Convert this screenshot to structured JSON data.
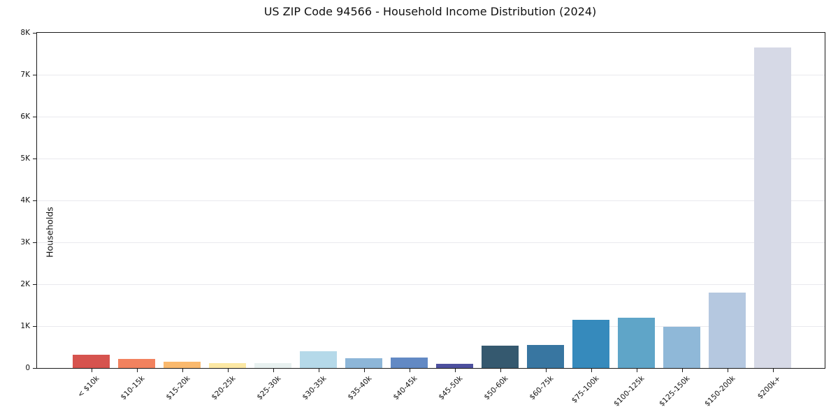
{
  "title": "US ZIP Code 94566 - Household Income Distribution (2024)",
  "chart_data": {
    "type": "bar",
    "title": "US ZIP Code 94566 - Household Income Distribution (2024)",
    "xlabel": "",
    "ylabel": "Households",
    "categories": [
      "< $10k",
      "$10-15k",
      "$15-20k",
      "$20-25k",
      "$25-30k",
      "$30-35k",
      "$35-40k",
      "$40-45k",
      "$45-50k",
      "$50-60k",
      "$60-75k",
      "$75-100k",
      "$100-125k",
      "$125-150k",
      "$150-200k",
      "$200k+"
    ],
    "values": [
      320,
      225,
      150,
      110,
      120,
      395,
      230,
      250,
      100,
      530,
      550,
      1150,
      1200,
      980,
      1800,
      7650
    ],
    "bar_colors": [
      "#d6534e",
      "#f2825f",
      "#fab96d",
      "#fce8a4",
      "#e8f1f0",
      "#b5d9e9",
      "#8db6d8",
      "#6289c4",
      "#4d509e",
      "#35596f",
      "#3876a1",
      "#368abc",
      "#5fa5c8",
      "#8fb8d8",
      "#b5c8e0",
      "#d6d9e6"
    ],
    "ylim": [
      0,
      8000
    ],
    "ytick_values": [
      0,
      1000,
      2000,
      3000,
      4000,
      5000,
      6000,
      7000,
      8000
    ],
    "ytick_labels": [
      "0",
      "1K",
      "2K",
      "3K",
      "4K",
      "5K",
      "6K",
      "7K",
      "8K"
    ],
    "grid": "horizontal-only",
    "gridline_color": "#e9e9ee",
    "spine_color": "#1a1a1a",
    "background_color": "#ffffff",
    "legend": "none",
    "xtick_rotation_deg": 45
  }
}
